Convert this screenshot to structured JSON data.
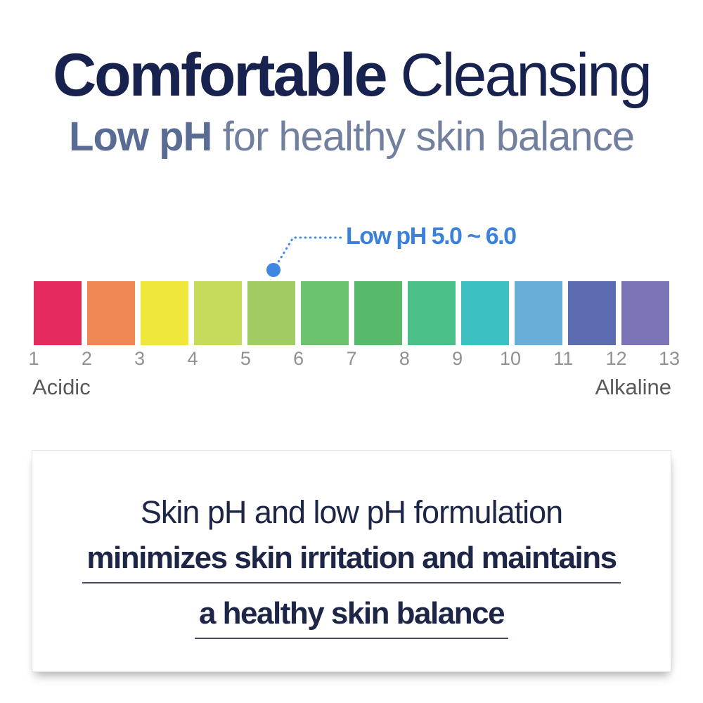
{
  "header": {
    "title_bold": "Comfortable",
    "title_light": "Cleansing",
    "subtitle_bold": "Low pH",
    "subtitle_light": "for healthy skin balance",
    "title_color": "#17224e",
    "subtitle_bold_color": "#5a6b94",
    "subtitle_light_color": "#72809f"
  },
  "annotation": {
    "label": "Low pH 5.0 ~ 6.0",
    "label_color": "#3b80d9",
    "dot_color": "#3f87e3",
    "marker_ph_value": 5.5
  },
  "ph_scale": {
    "tick_labels": [
      "1",
      "2",
      "3",
      "4",
      "5",
      "6",
      "7",
      "8",
      "9",
      "10",
      "11",
      "12",
      "13"
    ],
    "swatch_colors": [
      "#e52a5e",
      "#ee8753",
      "#efe73c",
      "#c6db5c",
      "#a0cc64",
      "#6cc36e",
      "#58b96a",
      "#4abf87",
      "#3dc0c0",
      "#68aed8",
      "#5b6cb0",
      "#7a73b6"
    ],
    "left_label": "Acidic",
    "right_label": "Alkaline",
    "tick_color": "#8f9193",
    "end_label_color": "#58595b"
  },
  "card": {
    "line1": "Skin pH and low pH formulation",
    "line2": "minimizes skin irritation and maintains",
    "line3": "a healthy skin balance"
  }
}
